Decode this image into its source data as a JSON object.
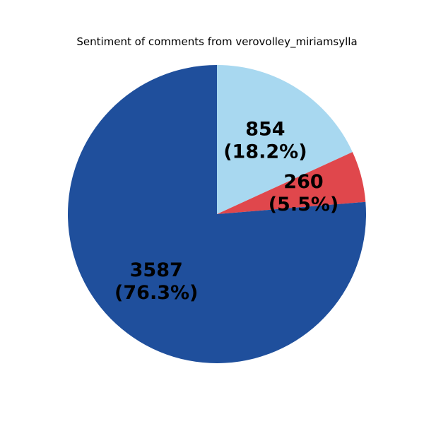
{
  "chart_data": {
    "type": "pie",
    "title": "Sentiment of comments from verovolley_miriamsylla",
    "start_angle_deg": 90,
    "direction": "clockwise",
    "slices": [
      {
        "value": 854,
        "label": "854",
        "percent_label": "(18.2%)",
        "color": "#a8d8f0"
      },
      {
        "value": 260,
        "label": "260",
        "percent_label": "(5.5%)",
        "color": "#e0474c"
      },
      {
        "value": 3587,
        "label": "3587",
        "percent_label": "(76.3%)",
        "color": "#1f4f9c"
      }
    ]
  }
}
